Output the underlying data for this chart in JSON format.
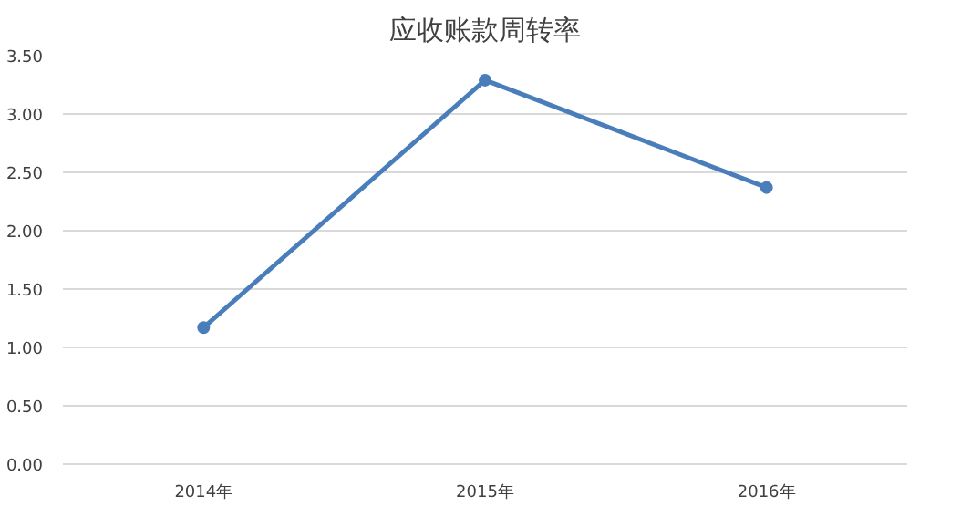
{
  "chart_data": {
    "type": "line",
    "title": "应收账款周转率",
    "categories": [
      "2014年",
      "2015年",
      "2016年"
    ],
    "series": [
      {
        "color": "#4a7ebb",
        "values": [
          1.17,
          3.29,
          2.37
        ]
      }
    ],
    "ylim": [
      0,
      3.5
    ],
    "yticks": [
      {
        "value": 0,
        "label": "0.00"
      },
      {
        "value": 0.5,
        "label": "0.50"
      },
      {
        "value": 1,
        "label": "1.00"
      },
      {
        "value": 1.5,
        "label": "1.50"
      },
      {
        "value": 2,
        "label": "2.00"
      },
      {
        "value": 2.5,
        "label": "2.50"
      },
      {
        "value": 3,
        "label": "3.00"
      },
      {
        "value": 3.5,
        "label": "3.50"
      }
    ],
    "grid": "y",
    "marker": "circle",
    "line_style": "solid"
  }
}
